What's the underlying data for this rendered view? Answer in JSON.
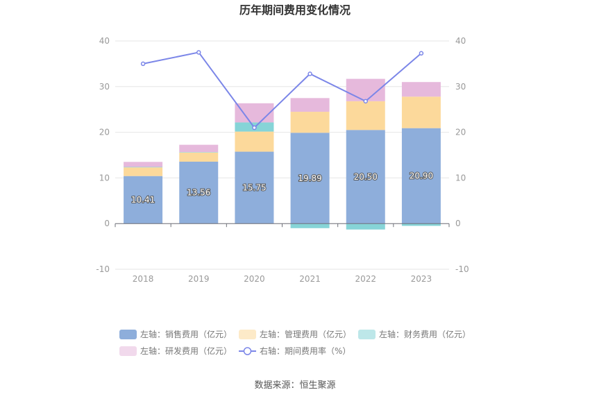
{
  "chart_data": {
    "type": "bar",
    "title": "历年期间费用变化情况",
    "categories": [
      "2018",
      "2019",
      "2020",
      "2021",
      "2022",
      "2023"
    ],
    "left_axis": {
      "ylim": [
        -10,
        40
      ],
      "ticks": [
        "-10",
        "0",
        "10",
        "20",
        "30",
        "40"
      ]
    },
    "right_axis": {
      "ylim": [
        -10,
        40
      ],
      "ticks": [
        "-10",
        "0",
        "10",
        "20",
        "30",
        "40"
      ]
    },
    "series": [
      {
        "name": "左轴：销售费用（亿元）",
        "type": "bar",
        "axis": "left",
        "color": "#8eaedb",
        "values": [
          10.41,
          13.56,
          15.75,
          19.89,
          20.5,
          20.9
        ],
        "labels": [
          "10.41",
          "13.56",
          "15.75",
          "19.89",
          "20.50",
          "20.90"
        ]
      },
      {
        "name": "左轴：管理费用（亿元）",
        "type": "bar",
        "axis": "left",
        "color": "#fcd99b",
        "values": [
          1.9,
          2.0,
          4.4,
          4.6,
          6.3,
          6.9
        ]
      },
      {
        "name": "左轴：财务费用（亿元）",
        "type": "bar",
        "axis": "left",
        "color": "#86d4d7",
        "values": [
          0.1,
          0.1,
          2.0,
          -1.0,
          -1.3,
          -0.5
        ]
      },
      {
        "name": "左轴：研发费用（亿元）",
        "type": "bar",
        "axis": "left",
        "color": "#e6b9dc",
        "values": [
          1.1,
          1.6,
          4.2,
          3.0,
          4.9,
          3.2
        ]
      },
      {
        "name": "右轴：期间费用率（%）",
        "type": "line",
        "axis": "right",
        "color": "#7b86e8",
        "values": [
          35.0,
          37.5,
          21.0,
          32.8,
          26.8,
          37.3
        ]
      }
    ],
    "legend_position": "bottom",
    "grid": true
  },
  "source_label": "数据来源：恒生聚源"
}
